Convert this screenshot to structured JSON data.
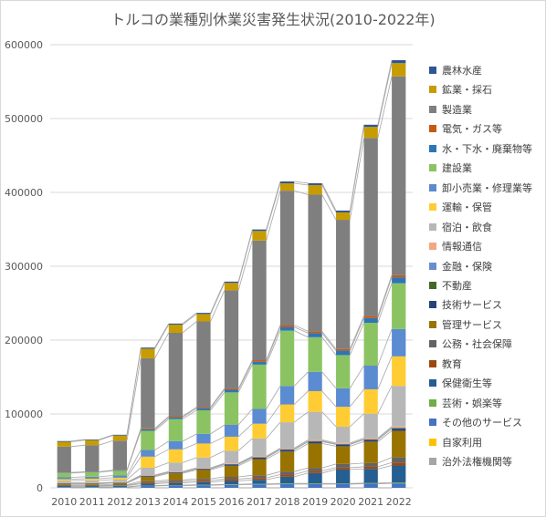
{
  "chart_data": {
    "type": "bar",
    "stacked": true,
    "title": "トルコの業種別休業災害発生状況(2010-2022年)",
    "xlabel": "",
    "ylabel": "",
    "ylim": [
      0,
      600000
    ],
    "yticks": [
      0,
      100000,
      200000,
      300000,
      400000,
      500000,
      600000
    ],
    "ytick_labels": [
      "0",
      "100000",
      "200000",
      "300000",
      "400000",
      "500000",
      "600000"
    ],
    "grid": true,
    "legend_position": "right",
    "categories": [
      "2010",
      "2011",
      "2012",
      "2013",
      "2014",
      "2015",
      "2016",
      "2017",
      "2018",
      "2019",
      "2020",
      "2021",
      "2022"
    ],
    "series": [
      {
        "name": "治外法権機関等",
        "color": "#a5a5a5",
        "values": [
          0,
          0,
          0,
          0,
          0,
          0,
          0,
          0,
          0,
          0,
          0,
          0,
          0
        ]
      },
      {
        "name": "自家利用",
        "color": "#ffc000",
        "values": [
          0,
          0,
          0,
          0,
          0,
          0,
          0,
          0,
          0,
          0,
          0,
          0,
          0
        ]
      },
      {
        "name": "その他のサービス",
        "color": "#4472c4",
        "values": [
          1000,
          1000,
          1000,
          2500,
          3000,
          3500,
          4000,
          4500,
          5000,
          5000,
          5000,
          5500,
          6000
        ]
      },
      {
        "name": "芸術・娯楽等",
        "color": "#70ad47",
        "values": [
          300,
          300,
          300,
          500,
          600,
          700,
          800,
          900,
          1000,
          1000,
          800,
          1000,
          1200
        ]
      },
      {
        "name": "保健衛生等",
        "color": "#255e91",
        "values": [
          1200,
          1200,
          1500,
          2500,
          3000,
          3500,
          4500,
          5500,
          9000,
          14000,
          19000,
          19000,
          23000
        ]
      },
      {
        "name": "教育",
        "color": "#9e480e",
        "values": [
          500,
          500,
          500,
          1500,
          1800,
          2000,
          2500,
          2500,
          3000,
          3000,
          2500,
          3000,
          4000
        ]
      },
      {
        "name": "公務・社会保障",
        "color": "#636363",
        "values": [
          1000,
          1000,
          1000,
          2000,
          2200,
          2500,
          3000,
          3500,
          4000,
          4000,
          5000,
          5000,
          7000
        ]
      },
      {
        "name": "管理サービス",
        "color": "#997300",
        "values": [
          1500,
          1500,
          2000,
          6000,
          9000,
          12000,
          15000,
          22000,
          27000,
          33000,
          24000,
          29000,
          36000
        ]
      },
      {
        "name": "技術サービス",
        "color": "#264478",
        "values": [
          500,
          500,
          500,
          1000,
          1200,
          1400,
          1700,
          2000,
          2500,
          2500,
          2300,
          2500,
          3000
        ]
      },
      {
        "name": "不動産",
        "color": "#43682b",
        "values": [
          200,
          200,
          200,
          300,
          300,
          300,
          400,
          500,
          500,
          500,
          400,
          500,
          600
        ]
      },
      {
        "name": "金融・保険",
        "color": "#698ed0",
        "values": [
          200,
          200,
          200,
          300,
          300,
          300,
          400,
          400,
          500,
          500,
          400,
          400,
          500
        ]
      },
      {
        "name": "情報通信",
        "color": "#f4a582",
        "values": [
          300,
          300,
          400,
          600,
          700,
          800,
          900,
          1000,
          1300,
          1400,
          1300,
          1500,
          1700
        ]
      },
      {
        "name": "宿泊・飲食",
        "color": "#b7b7b7",
        "values": [
          3000,
          3300,
          3500,
          10000,
          12000,
          14000,
          17000,
          24000,
          35000,
          38000,
          22000,
          33000,
          55000
        ]
      },
      {
        "name": "運輸・保管",
        "color": "#ffcd33",
        "values": [
          2000,
          2300,
          2600,
          15000,
          18000,
          19000,
          19000,
          20000,
          24000,
          28000,
          27000,
          33000,
          40000
        ]
      },
      {
        "name": "卸小売業・修理業等",
        "color": "#5b8bd1",
        "values": [
          2500,
          2700,
          3000,
          9000,
          11000,
          13000,
          16000,
          20000,
          25000,
          26000,
          25000,
          32000,
          37000
        ]
      },
      {
        "name": "建設業",
        "color": "#8bc363",
        "values": [
          5800,
          6000,
          6300,
          26000,
          30000,
          32000,
          44000,
          60000,
          75000,
          47000,
          45000,
          58000,
          62000
        ]
      },
      {
        "name": "水・下水・廃棄物等",
        "color": "#2e75b6",
        "values": [
          500,
          500,
          600,
          2000,
          2400,
          2800,
          3500,
          4000,
          5000,
          5500,
          6000,
          6500,
          8000
        ]
      },
      {
        "name": "電気・ガス等",
        "color": "#c55a11",
        "values": [
          300,
          300,
          300,
          1200,
          1400,
          1500,
          1700,
          2000,
          2500,
          2500,
          2200,
          2700,
          3000
        ]
      },
      {
        "name": "製造業",
        "color": "#7f7f7f",
        "values": [
          35000,
          36000,
          40000,
          95000,
          113000,
          116000,
          133000,
          162000,
          182000,
          185000,
          175000,
          241000,
          269000
        ]
      },
      {
        "name": "鉱業・採石",
        "color": "#c69c00",
        "values": [
          6500,
          6700,
          6900,
          13000,
          11000,
          10000,
          10000,
          13000,
          10000,
          13000,
          10000,
          15000,
          18000
        ]
      },
      {
        "name": "農林水産",
        "color": "#2f5597",
        "values": [
          1000,
          1000,
          1000,
          1500,
          1500,
          1600,
          1800,
          2000,
          2500,
          2500,
          2500,
          3000,
          4000
        ]
      }
    ]
  }
}
